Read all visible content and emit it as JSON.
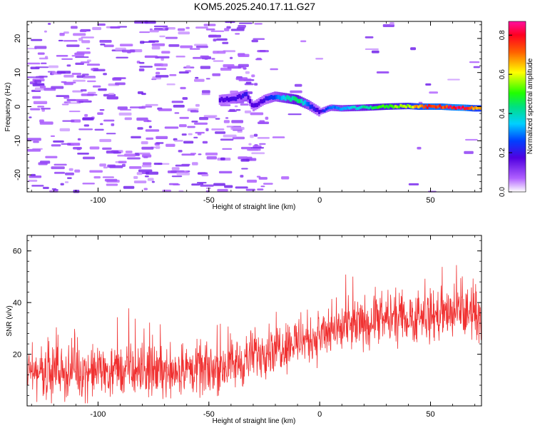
{
  "title": "KOM5.2025.240.17.11.G27",
  "chart_data": [
    {
      "type": "heatmap",
      "title": "KOM5.2025.240.17.11.G27",
      "xlabel": "Height of straight line (km)",
      "ylabel": "Frequency (Hz)",
      "xlim": [
        -132,
        73
      ],
      "ylim": [
        -25,
        25
      ],
      "x_ticks": [
        -100,
        -50,
        0,
        50
      ],
      "y_ticks": [
        -20,
        -10,
        0,
        10,
        20
      ],
      "x_tick_labels": [
        "-100",
        "-50",
        "0",
        "50"
      ],
      "y_tick_labels": [
        "-20",
        "-10",
        "0",
        "10",
        "20"
      ],
      "colorbar": {
        "label": "Normalized spectral amplitude",
        "range": [
          0.0,
          0.87
        ],
        "ticks": [
          0.0,
          0.2,
          0.4,
          0.6,
          0.8
        ],
        "tick_labels": [
          "0.0",
          "0.2",
          "0.4",
          "0.6",
          "0.8"
        ]
      },
      "ridge": [
        {
          "x": -45,
          "f": 2.0,
          "a": 0.18
        },
        {
          "x": -38,
          "f": 2.5,
          "a": 0.2
        },
        {
          "x": -33,
          "f": 3.5,
          "a": 0.22
        },
        {
          "x": -30,
          "f": 0.0,
          "a": 0.18
        },
        {
          "x": -25,
          "f": 2.0,
          "a": 0.2
        },
        {
          "x": -20,
          "f": 3.0,
          "a": 0.28
        },
        {
          "x": -15,
          "f": 2.5,
          "a": 0.4
        },
        {
          "x": -10,
          "f": 2.0,
          "a": 0.5
        },
        {
          "x": -5,
          "f": 0.5,
          "a": 0.3
        },
        {
          "x": 0,
          "f": -1.5,
          "a": 0.18
        },
        {
          "x": 5,
          "f": -0.3,
          "a": 0.3
        },
        {
          "x": 10,
          "f": -0.5,
          "a": 0.35
        },
        {
          "x": 20,
          "f": -0.3,
          "a": 0.45
        },
        {
          "x": 30,
          "f": 0.0,
          "a": 0.55
        },
        {
          "x": 40,
          "f": 0.2,
          "a": 0.6
        },
        {
          "x": 45,
          "f": 0.0,
          "a": 0.75
        },
        {
          "x": 50,
          "f": 0.0,
          "a": 0.82
        },
        {
          "x": 55,
          "f": 0.0,
          "a": 0.8
        },
        {
          "x": 60,
          "f": -0.2,
          "a": 0.85
        },
        {
          "x": 65,
          "f": -0.3,
          "a": 0.87
        },
        {
          "x": 70,
          "f": -0.5,
          "a": 0.7
        }
      ]
    },
    {
      "type": "line",
      "xlabel": "Height of straight line (km)",
      "ylabel": "SNR (v/v)",
      "xlim": [
        -132,
        73
      ],
      "ylim": [
        0,
        66
      ],
      "x_ticks": [
        -100,
        -50,
        0,
        50
      ],
      "y_ticks": [
        20,
        40,
        60
      ],
      "x_tick_labels": [
        "-100",
        "-50",
        "0",
        "50"
      ],
      "y_tick_labels": [
        "20",
        "40",
        "60"
      ],
      "series": [
        {
          "name": "SNR",
          "color": "#f03030",
          "trend": [
            {
              "x": -132,
              "y": 13
            },
            {
              "x": -50,
              "y": 14
            },
            {
              "x": -35,
              "y": 17
            },
            {
              "x": -25,
              "y": 22
            },
            {
              "x": 0,
              "y": 27
            },
            {
              "x": 25,
              "y": 33
            },
            {
              "x": 50,
              "y": 35
            },
            {
              "x": 73,
              "y": 36
            }
          ],
          "spread": 9,
          "points": 1400
        }
      ]
    }
  ]
}
